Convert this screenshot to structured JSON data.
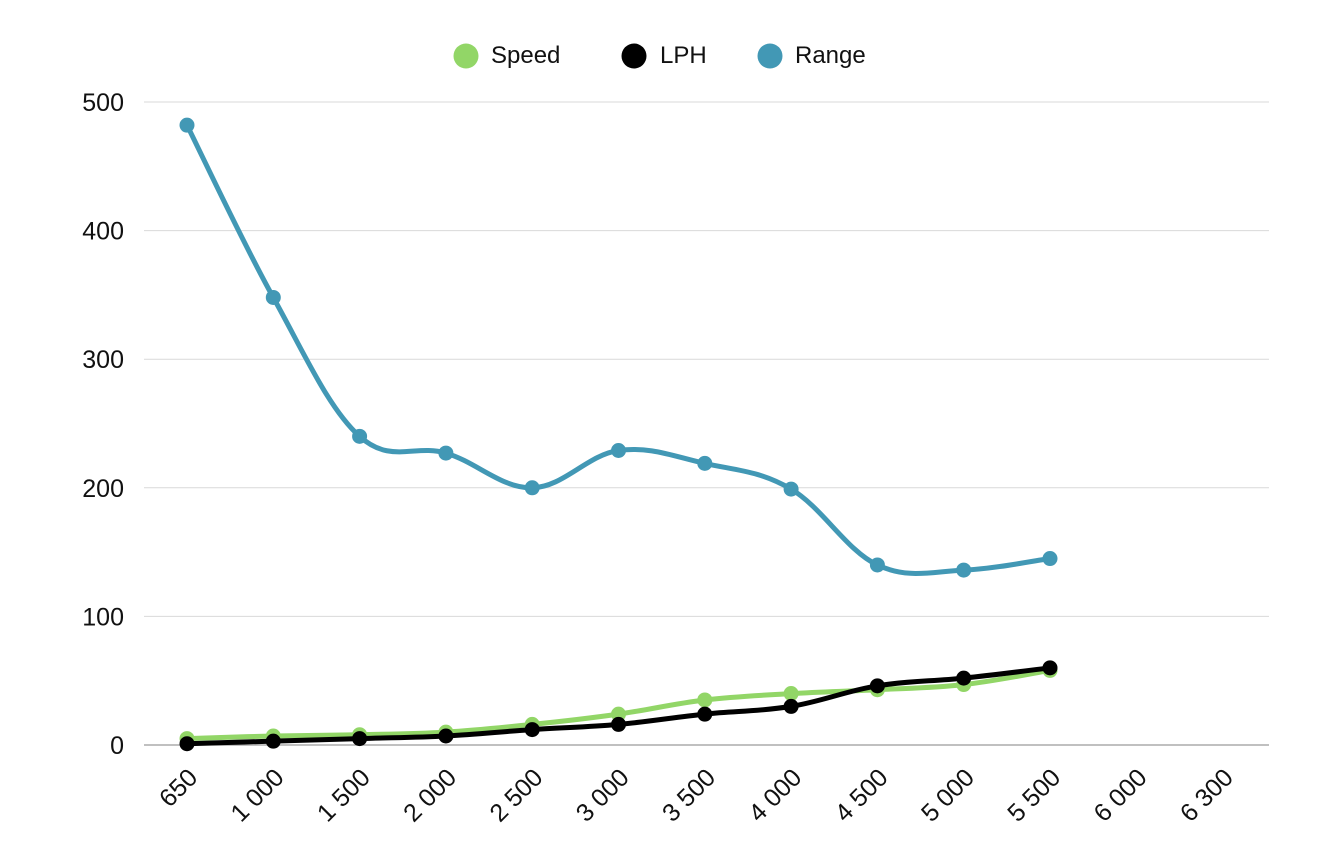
{
  "chart_data": {
    "type": "line",
    "title": "",
    "xlabel": "",
    "ylabel": "",
    "categories": [
      "650",
      "1 000",
      "1 500",
      "2 000",
      "2 500",
      "3 000",
      "3 500",
      "4 000",
      "4 500",
      "5 000",
      "5 500",
      "6 000",
      "6 300"
    ],
    "ylim": [
      0,
      500
    ],
    "yticks": [
      0,
      100,
      200,
      300,
      400,
      500
    ],
    "ytick_labels": [
      "0",
      "100",
      "200",
      "300",
      "400",
      "500"
    ],
    "grid": true,
    "legend_position": "top-center",
    "series": [
      {
        "name": "Speed",
        "color": "#92d667",
        "values": [
          5,
          7,
          8,
          10,
          16,
          24,
          35,
          40,
          43,
          47,
          58,
          null,
          null
        ]
      },
      {
        "name": "LPH",
        "color": "#000000",
        "values": [
          1,
          3,
          5,
          7,
          12,
          16,
          24,
          30,
          46,
          52,
          60,
          null,
          null
        ]
      },
      {
        "name": "Range",
        "color": "#4298b5",
        "values": [
          482,
          348,
          240,
          227,
          200,
          229,
          219,
          199,
          140,
          136,
          145,
          null,
          null
        ]
      }
    ]
  }
}
